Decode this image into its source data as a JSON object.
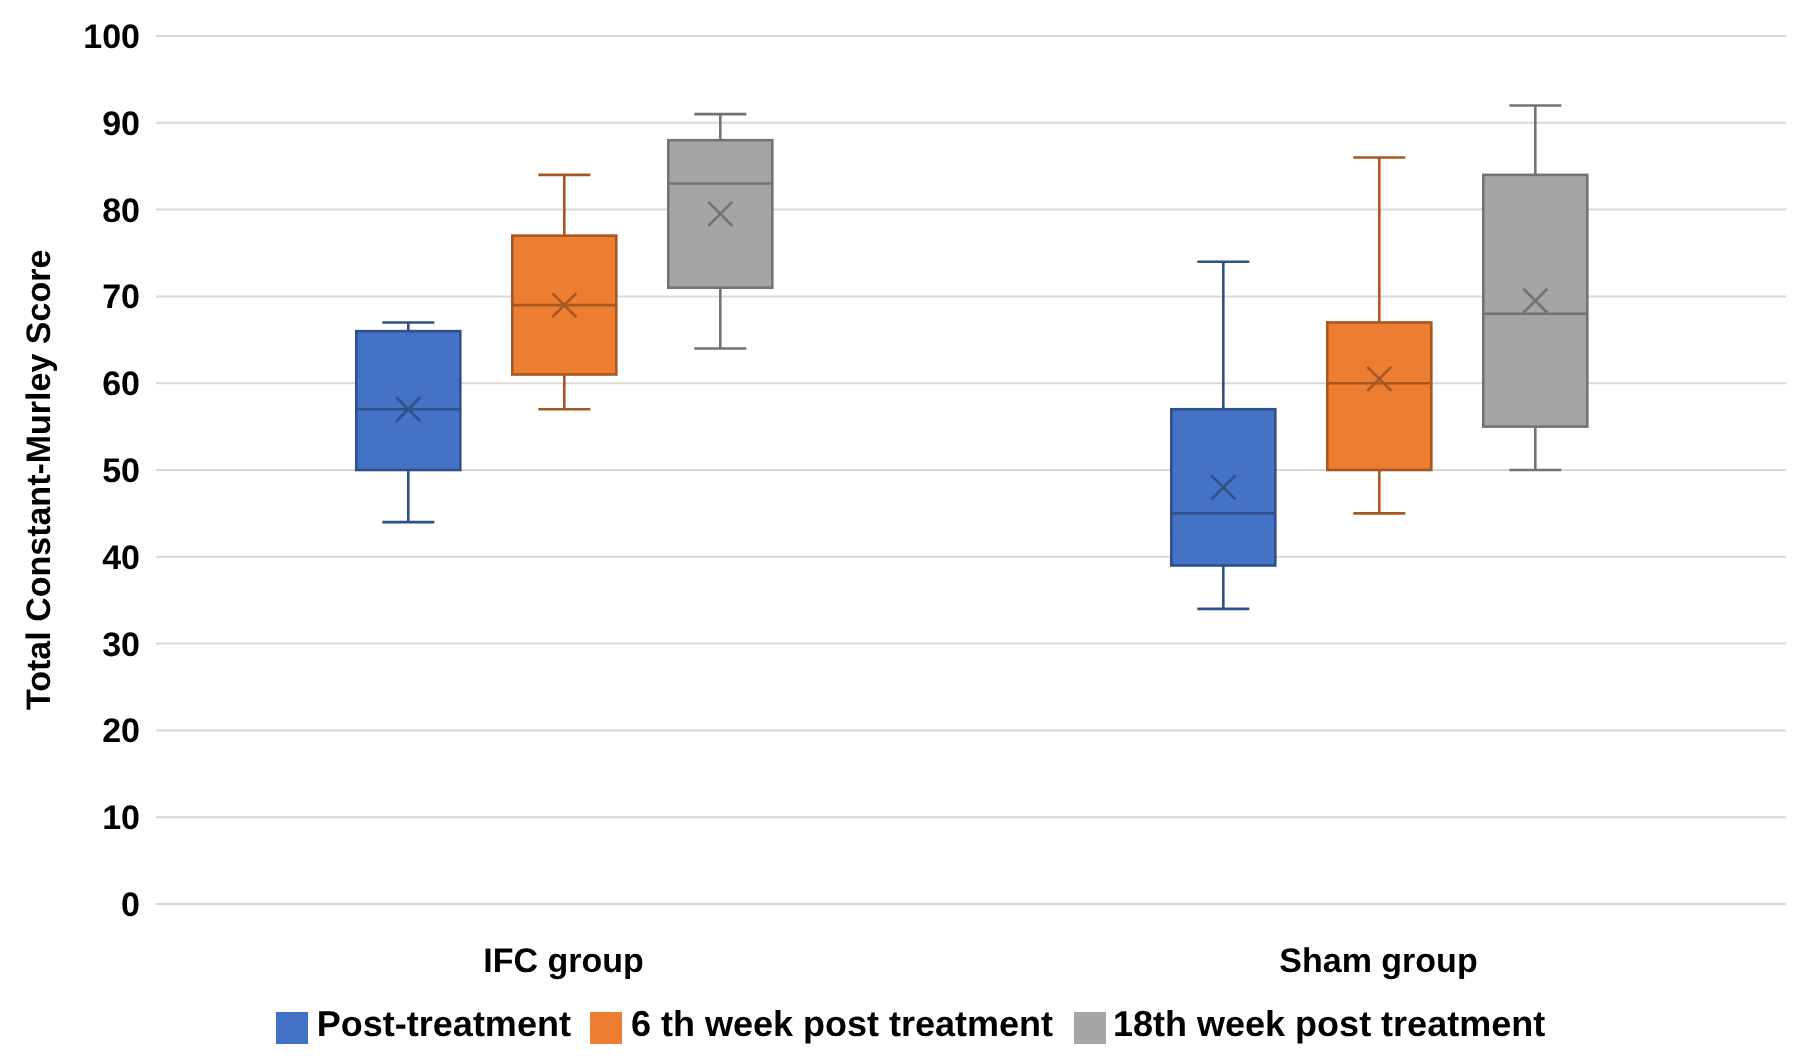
{
  "chart_data": {
    "type": "box",
    "ylabel": "Total Constant-Murley Score",
    "categories": [
      "IFC group",
      "Sham group"
    ],
    "series": [
      {
        "name": "Post-treatment",
        "color": "#4472c4",
        "boxes": [
          {
            "low": 44,
            "q1": 50,
            "median": 57,
            "q3": 66,
            "high": 67,
            "mean": 57
          },
          {
            "low": 34,
            "q1": 39,
            "median": 45,
            "q3": 57,
            "high": 74,
            "mean": 48
          }
        ]
      },
      {
        "name": "6 th week post treatment",
        "color": "#ed7d31",
        "boxes": [
          {
            "low": 57,
            "q1": 61,
            "median": 69,
            "q3": 77,
            "high": 84,
            "mean": 69
          },
          {
            "low": 45,
            "q1": 50,
            "median": 60,
            "q3": 67,
            "high": 86,
            "mean": 60.5
          }
        ]
      },
      {
        "name": "18th week post treatment",
        "color": "#a5a5a5",
        "boxes": [
          {
            "low": 64,
            "q1": 71,
            "median": 83,
            "q3": 88,
            "high": 91,
            "mean": 79.5
          },
          {
            "low": 50,
            "q1": 55,
            "median": 68,
            "q3": 84,
            "high": 92,
            "mean": 69.5
          }
        ]
      }
    ],
    "ylim": [
      0,
      100
    ],
    "yticks": [
      0,
      10,
      20,
      30,
      40,
      50,
      60,
      70,
      80,
      90,
      100
    ],
    "grid": "y",
    "legend": "bottom"
  }
}
